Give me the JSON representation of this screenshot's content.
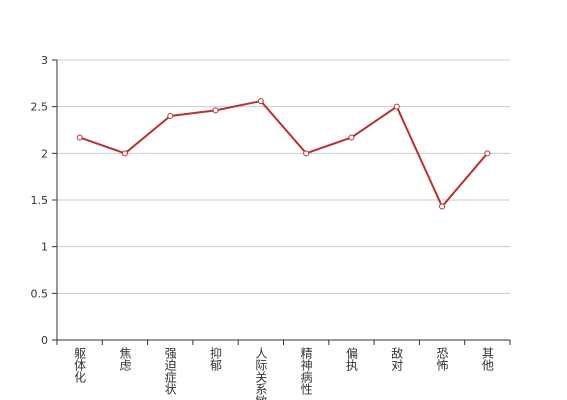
{
  "chart_data": {
    "type": "line",
    "categories": [
      "躯体化",
      "焦虑",
      "强迫症状",
      "抑郁",
      "人际关系敏感",
      "精神病性",
      "偏执",
      "敌对",
      "恐怖",
      "其他"
    ],
    "values": [
      2.17,
      2.0,
      2.4,
      2.46,
      2.56,
      2.0,
      2.17,
      2.5,
      1.43,
      2.0
    ],
    "color": "#b83232",
    "ylim": [
      0,
      3
    ],
    "yticks": [
      0,
      0.5,
      1,
      1.5,
      2,
      2.5,
      3
    ],
    "grid": true
  }
}
